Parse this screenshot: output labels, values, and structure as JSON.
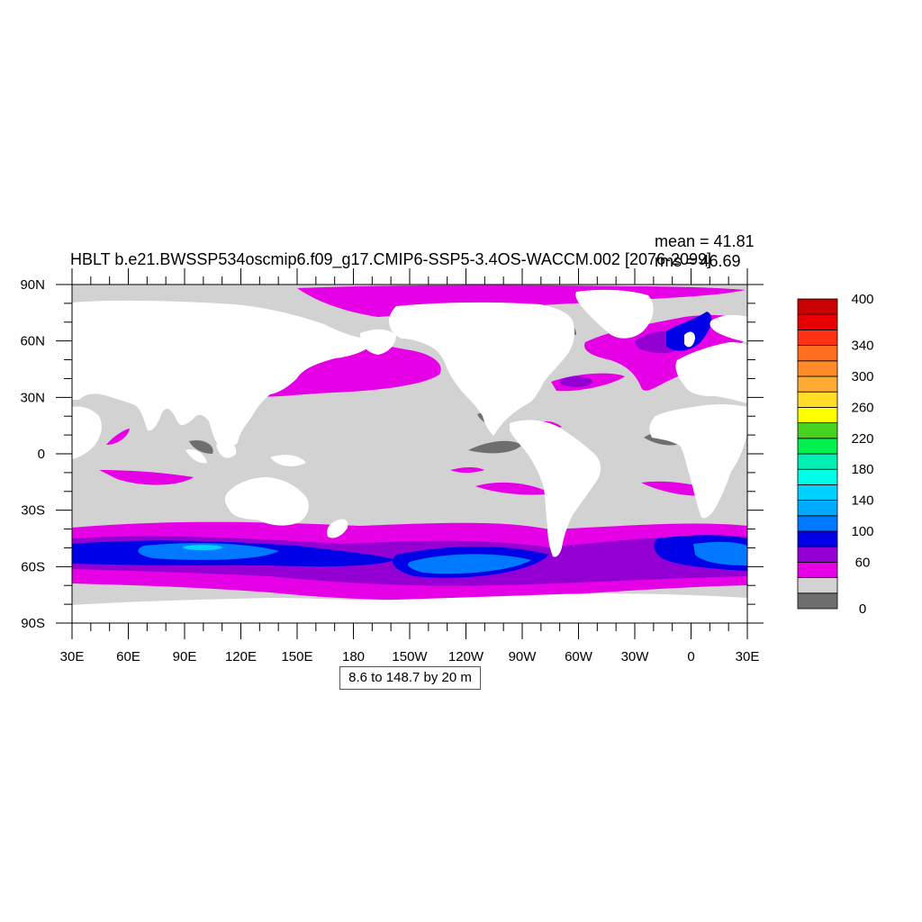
{
  "plot": {
    "title": "HBLT b.e21.BWSSP534oscmip6.f09_g17.CMIP6-SSP5-3.4OS-WACCM.002 [2076-2099]",
    "stat_mean": "mean = 41.81",
    "stat_rms": "rms = 46.69",
    "info_box": "8.6 to 148.7 by 20 m"
  },
  "axes": {
    "lat_ticks": [
      "90N",
      "60N",
      "30N",
      "0",
      "30S",
      "60S",
      "90S"
    ],
    "lon_ticks": [
      "30E",
      "60E",
      "90E",
      "120E",
      "150E",
      "180",
      "150W",
      "120W",
      "90W",
      "60W",
      "30W",
      "0",
      "30E"
    ]
  },
  "colorbar": {
    "colors": [
      "#6e6e6e",
      "#d2d2d2",
      "#e600e6",
      "#9400d3",
      "#0000e6",
      "#0078ff",
      "#00aaff",
      "#00d2ff",
      "#00ffe6",
      "#00f0b4",
      "#00f050",
      "#46d21e",
      "#ffff00",
      "#ffdc28",
      "#ffaa32",
      "#ff8c28",
      "#ff6e1e",
      "#ff3214",
      "#e60000",
      "#c80000"
    ],
    "labels": [
      "0",
      "60",
      "100",
      "140",
      "180",
      "220",
      "260",
      "300",
      "340",
      "400"
    ]
  },
  "legend_colors": {
    "land": "#ffffff",
    "ocean_low": "#d2d2d2",
    "ocean_min": "#6e6e6e",
    "magenta": "#e600e6",
    "purple": "#9400d3",
    "blue": "#0000e6",
    "lightblue": "#0078ff",
    "cyan": "#00d2ff"
  }
}
